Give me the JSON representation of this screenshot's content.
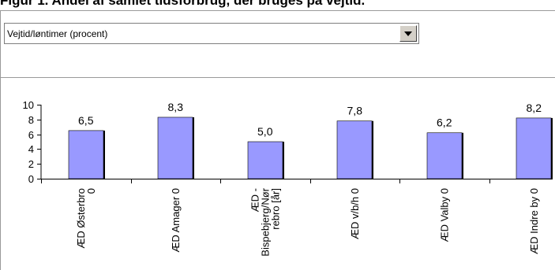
{
  "page_title": "Figur 1. Andel af samlet tidsforbrug, der bruges på vejtid.",
  "selector": {
    "selected": "Vejtid/løntimer (procent)",
    "icon": "chevron-down-icon"
  },
  "colors": {
    "bar_fill": "#9999ff",
    "bar_shadow": "#000000",
    "axis": "#000000"
  },
  "chart_data": {
    "type": "bar",
    "categories": [
      "ÆD Østerbro 0",
      "ÆD Amager 0",
      "ÆD - Bispebjerg/Nørrebro [år]",
      "ÆD v/b/h 0",
      "ÆD Valby 0",
      "ÆD Indre by 0"
    ],
    "category_lines": [
      [
        "ÆD Østerbro",
        "0"
      ],
      [
        "ÆD Amager 0"
      ],
      [
        "ÆD -",
        "Bispebjerg/Nør",
        "rebro [år]"
      ],
      [
        "ÆD v/b/h 0"
      ],
      [
        "ÆD Valby 0"
      ],
      [
        "ÆD Indre by 0"
      ]
    ],
    "values": [
      6.5,
      8.3,
      5.0,
      7.8,
      6.2,
      8.2
    ],
    "data_labels": [
      "6,5",
      "8,3",
      "5,0",
      "7,8",
      "6,2",
      "8,2"
    ],
    "ylim": [
      0,
      10
    ],
    "yticks": [
      0,
      2,
      4,
      6,
      8,
      10
    ],
    "ytick_labels": [
      "0",
      "2",
      "4",
      "6",
      "8",
      "10"
    ],
    "title": "",
    "xlabel": "",
    "ylabel": "",
    "grid": false,
    "legend": false
  }
}
